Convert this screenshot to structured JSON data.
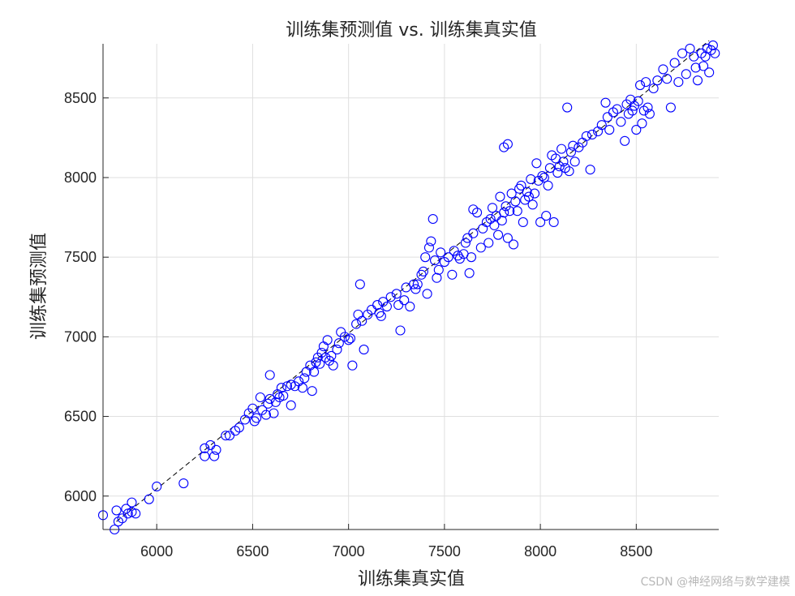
{
  "chart_data": {
    "type": "scatter",
    "title": "训练集预测值 vs. 训练集真实值",
    "xlabel": "训练集真实值",
    "ylabel": "训练集预测值",
    "xlim": [
      5720,
      8930
    ],
    "ylim": [
      5790,
      8840
    ],
    "xticks": [
      6000,
      6500,
      7000,
      7500,
      8000,
      8500
    ],
    "yticks": [
      6000,
      6500,
      7000,
      7500,
      8000,
      8500
    ],
    "grid": true,
    "marker": "open-circle",
    "marker_color": "#0000ff",
    "reference_line": {
      "style": "dashed",
      "color": "#000000",
      "from": [
        5790,
        5840
      ],
      "to": [
        8880,
        8860
      ]
    },
    "series": [
      {
        "points": [
          [
            5720,
            5880
          ],
          [
            5780,
            5790
          ],
          [
            5790,
            5910
          ],
          [
            5800,
            5840
          ],
          [
            5820,
            5860
          ],
          [
            5840,
            5920
          ],
          [
            5850,
            5890
          ],
          [
            5870,
            5960
          ],
          [
            5870,
            5900
          ],
          [
            5890,
            5890
          ],
          [
            5960,
            5980
          ],
          [
            6000,
            6060
          ],
          [
            6140,
            6080
          ],
          [
            6250,
            6250
          ],
          [
            6250,
            6300
          ],
          [
            6280,
            6320
          ],
          [
            6300,
            6250
          ],
          [
            6310,
            6290
          ],
          [
            6360,
            6380
          ],
          [
            6380,
            6380
          ],
          [
            6410,
            6410
          ],
          [
            6430,
            6430
          ],
          [
            6460,
            6480
          ],
          [
            6480,
            6520
          ],
          [
            6500,
            6550
          ],
          [
            6510,
            6470
          ],
          [
            6520,
            6490
          ],
          [
            6540,
            6620
          ],
          [
            6550,
            6540
          ],
          [
            6570,
            6510
          ],
          [
            6580,
            6580
          ],
          [
            6590,
            6610
          ],
          [
            6590,
            6760
          ],
          [
            6610,
            6520
          ],
          [
            6620,
            6590
          ],
          [
            6630,
            6640
          ],
          [
            6640,
            6620
          ],
          [
            6650,
            6680
          ],
          [
            6660,
            6630
          ],
          [
            6680,
            6690
          ],
          [
            6700,
            6570
          ],
          [
            6700,
            6700
          ],
          [
            6720,
            6690
          ],
          [
            6740,
            6720
          ],
          [
            6760,
            6680
          ],
          [
            6770,
            6740
          ],
          [
            6780,
            6780
          ],
          [
            6800,
            6820
          ],
          [
            6810,
            6660
          ],
          [
            6820,
            6780
          ],
          [
            6830,
            6840
          ],
          [
            6840,
            6870
          ],
          [
            6850,
            6830
          ],
          [
            6860,
            6900
          ],
          [
            6870,
            6940
          ],
          [
            6880,
            6870
          ],
          [
            6890,
            6980
          ],
          [
            6900,
            6850
          ],
          [
            6910,
            6880
          ],
          [
            6920,
            6820
          ],
          [
            6940,
            6920
          ],
          [
            6950,
            6960
          ],
          [
            6960,
            7030
          ],
          [
            6980,
            7000
          ],
          [
            7000,
            6980
          ],
          [
            7010,
            6990
          ],
          [
            7020,
            6820
          ],
          [
            7040,
            7080
          ],
          [
            7050,
            7140
          ],
          [
            7060,
            7330
          ],
          [
            7070,
            7100
          ],
          [
            7080,
            6920
          ],
          [
            7100,
            7140
          ],
          [
            7120,
            7170
          ],
          [
            7150,
            7200
          ],
          [
            7160,
            7150
          ],
          [
            7170,
            7130
          ],
          [
            7180,
            7220
          ],
          [
            7200,
            7190
          ],
          [
            7220,
            7250
          ],
          [
            7250,
            7270
          ],
          [
            7260,
            7200
          ],
          [
            7270,
            7040
          ],
          [
            7290,
            7230
          ],
          [
            7300,
            7310
          ],
          [
            7320,
            7190
          ],
          [
            7340,
            7330
          ],
          [
            7350,
            7300
          ],
          [
            7360,
            7330
          ],
          [
            7380,
            7390
          ],
          [
            7390,
            7410
          ],
          [
            7400,
            7500
          ],
          [
            7410,
            7270
          ],
          [
            7420,
            7560
          ],
          [
            7430,
            7600
          ],
          [
            7440,
            7740
          ],
          [
            7450,
            7480
          ],
          [
            7460,
            7370
          ],
          [
            7470,
            7420
          ],
          [
            7480,
            7530
          ],
          [
            7500,
            7470
          ],
          [
            7520,
            7500
          ],
          [
            7540,
            7390
          ],
          [
            7550,
            7540
          ],
          [
            7570,
            7510
          ],
          [
            7580,
            7490
          ],
          [
            7600,
            7520
          ],
          [
            7610,
            7590
          ],
          [
            7620,
            7620
          ],
          [
            7630,
            7400
          ],
          [
            7640,
            7500
          ],
          [
            7650,
            7650
          ],
          [
            7650,
            7800
          ],
          [
            7670,
            7780
          ],
          [
            7690,
            7560
          ],
          [
            7700,
            7680
          ],
          [
            7720,
            7720
          ],
          [
            7730,
            7590
          ],
          [
            7740,
            7740
          ],
          [
            7750,
            7810
          ],
          [
            7760,
            7700
          ],
          [
            7770,
            7760
          ],
          [
            7780,
            7640
          ],
          [
            7790,
            7880
          ],
          [
            7800,
            7730
          ],
          [
            7810,
            7780
          ],
          [
            7810,
            8190
          ],
          [
            7820,
            7820
          ],
          [
            7830,
            7620
          ],
          [
            7830,
            8210
          ],
          [
            7840,
            7790
          ],
          [
            7850,
            7900
          ],
          [
            7860,
            7580
          ],
          [
            7870,
            7850
          ],
          [
            7880,
            7790
          ],
          [
            7890,
            7930
          ],
          [
            7900,
            7950
          ],
          [
            7910,
            7720
          ],
          [
            7920,
            7860
          ],
          [
            7930,
            7910
          ],
          [
            7940,
            7880
          ],
          [
            7950,
            7990
          ],
          [
            7960,
            7830
          ],
          [
            7970,
            7900
          ],
          [
            7980,
            8090
          ],
          [
            7990,
            7980
          ],
          [
            8000,
            7720
          ],
          [
            8010,
            8010
          ],
          [
            8020,
            8000
          ],
          [
            8030,
            7760
          ],
          [
            8040,
            7950
          ],
          [
            8050,
            8060
          ],
          [
            8060,
            8140
          ],
          [
            8070,
            7720
          ],
          [
            8080,
            8120
          ],
          [
            8090,
            8030
          ],
          [
            8100,
            8070
          ],
          [
            8110,
            8180
          ],
          [
            8120,
            8100
          ],
          [
            8130,
            8060
          ],
          [
            8140,
            8440
          ],
          [
            8150,
            8040
          ],
          [
            8160,
            8160
          ],
          [
            8170,
            8200
          ],
          [
            8180,
            8100
          ],
          [
            8200,
            8190
          ],
          [
            8220,
            8220
          ],
          [
            8240,
            8260
          ],
          [
            8260,
            8050
          ],
          [
            8270,
            8270
          ],
          [
            8300,
            8290
          ],
          [
            8320,
            8330
          ],
          [
            8340,
            8470
          ],
          [
            8350,
            8380
          ],
          [
            8360,
            8300
          ],
          [
            8380,
            8410
          ],
          [
            8400,
            8430
          ],
          [
            8420,
            8350
          ],
          [
            8440,
            8230
          ],
          [
            8450,
            8460
          ],
          [
            8460,
            8400
          ],
          [
            8470,
            8490
          ],
          [
            8480,
            8420
          ],
          [
            8490,
            8450
          ],
          [
            8500,
            8300
          ],
          [
            8510,
            8480
          ],
          [
            8520,
            8580
          ],
          [
            8530,
            8340
          ],
          [
            8540,
            8420
          ],
          [
            8550,
            8600
          ],
          [
            8560,
            8440
          ],
          [
            8570,
            8400
          ],
          [
            8590,
            8560
          ],
          [
            8610,
            8610
          ],
          [
            8640,
            8680
          ],
          [
            8660,
            8620
          ],
          [
            8680,
            8440
          ],
          [
            8700,
            8720
          ],
          [
            8720,
            8600
          ],
          [
            8740,
            8780
          ],
          [
            8760,
            8650
          ],
          [
            8780,
            8810
          ],
          [
            8800,
            8760
          ],
          [
            8810,
            8690
          ],
          [
            8820,
            8610
          ],
          [
            8840,
            8780
          ],
          [
            8850,
            8700
          ],
          [
            8860,
            8760
          ],
          [
            8870,
            8810
          ],
          [
            8880,
            8660
          ],
          [
            8890,
            8800
          ],
          [
            8900,
            8830
          ],
          [
            8910,
            8780
          ]
        ]
      }
    ]
  },
  "watermark": "CSDN @神经网络与数学建模"
}
